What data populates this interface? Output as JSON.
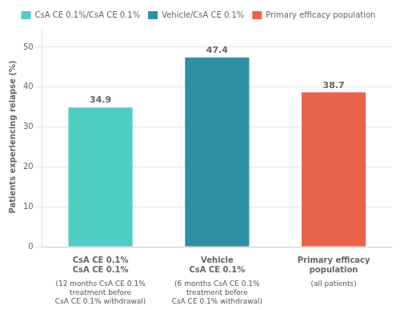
{
  "chart_data": {
    "type": "bar",
    "categories": [
      "CsA CE 0.1%\nCsA CE 0.1%",
      "Vehicle\nCsA CE 0.1%",
      "Primary efficacy\npopulation"
    ],
    "category_subtitles": [
      "(12 months CsA CE 0.1%\ntreatment before\nCsA CE 0.1% withdrawal)",
      "(6 months CsA CE 0.1%\ntreatment before\nCsA CE 0.1% withdrawal)",
      "(all patients)"
    ],
    "series": [
      {
        "name": "CsA CE 0.1%/CsA CE 0.1%",
        "color": "#4ecdc4",
        "values": [
          34.9,
          null,
          null
        ]
      },
      {
        "name": "Vehicle/CsA CE 0.1%",
        "color": "#2e8fa5",
        "values": [
          null,
          47.4,
          null
        ]
      },
      {
        "name": "Primary efficacy population",
        "color": "#e8634a",
        "values": [
          null,
          null,
          38.7
        ]
      }
    ],
    "ylabel": "Patients experiencing relapse (%)",
    "ylim": [
      0,
      55
    ],
    "yticks": [
      0,
      10,
      20,
      30,
      40,
      50
    ],
    "grid": true,
    "legend": "top",
    "data_labels": true
  }
}
